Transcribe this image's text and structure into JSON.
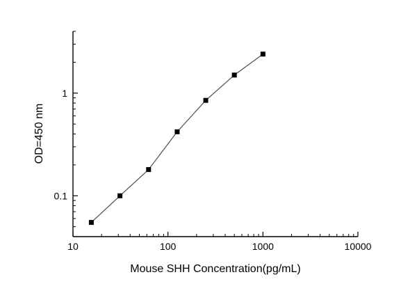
{
  "page": {
    "background": "#ffffff"
  },
  "chart_data": {
    "type": "line",
    "title": "",
    "xlabel": "Mouse SHH Concentration(pg/mL)",
    "ylabel": "OD=450 nm",
    "x_scale": "log",
    "y_scale": "log",
    "xlim": [
      10,
      10000
    ],
    "ylim": [
      0.04,
      4
    ],
    "x_ticks": [
      {
        "value": 10,
        "label": "10"
      },
      {
        "value": 100,
        "label": "100"
      },
      {
        "value": 1000,
        "label": "1000"
      },
      {
        "value": 10000,
        "label": "10000"
      }
    ],
    "y_ticks": [
      {
        "value": 0.1,
        "label": "0.1"
      },
      {
        "value": 1,
        "label": "1"
      }
    ],
    "series": [
      {
        "x": [
          15.6,
          31.25,
          62.5,
          125,
          250,
          500,
          1000
        ],
        "y": [
          0.055,
          0.1,
          0.18,
          0.42,
          0.85,
          1.5,
          2.4
        ],
        "marker": "filled-square",
        "marker_size": 7,
        "marker_color": "#000000",
        "line_color": "#4d4d4d"
      }
    ],
    "grid": false,
    "legend": "none",
    "axis_color": "#000000",
    "tick_direction": "in"
  }
}
